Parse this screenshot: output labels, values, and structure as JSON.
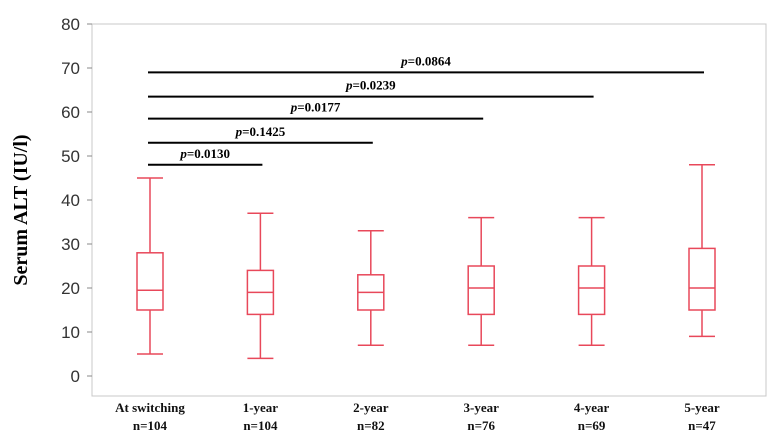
{
  "chart_data": {
    "type": "boxplot",
    "ylabel": "Serum ALT (IU/l)",
    "ylim": [
      0,
      80
    ],
    "yticks": [
      0,
      10,
      20,
      30,
      40,
      50,
      60,
      70,
      80
    ],
    "grid": false,
    "box_color": "#e8485a",
    "categories": [
      {
        "label": "At switching",
        "n": "n=104",
        "min": 5,
        "q1": 15,
        "median": 19.5,
        "q3": 28,
        "max": 45
      },
      {
        "label": "1-year",
        "n": "n=104",
        "min": 4,
        "q1": 14,
        "median": 19,
        "q3": 24,
        "max": 37
      },
      {
        "label": "2-year",
        "n": "n=82",
        "min": 7,
        "q1": 15,
        "median": 19,
        "q3": 23,
        "max": 33
      },
      {
        "label": "3-year",
        "n": "n=76",
        "min": 7,
        "q1": 14,
        "median": 20,
        "q3": 25,
        "max": 36
      },
      {
        "label": "4-year",
        "n": "n=69",
        "min": 7,
        "q1": 14,
        "median": 20,
        "q3": 25,
        "max": 36
      },
      {
        "label": "5-year",
        "n": "n=47",
        "min": 9,
        "q1": 15,
        "median": 20,
        "q3": 29,
        "max": 48
      }
    ],
    "comparisons": [
      {
        "from": 0,
        "to": 1,
        "y": 48,
        "p_prefix": "p",
        "p_value": "=0.0130"
      },
      {
        "from": 0,
        "to": 2,
        "y": 53,
        "p_prefix": "p",
        "p_value": "=0.1425"
      },
      {
        "from": 0,
        "to": 3,
        "y": 58.5,
        "p_prefix": "p",
        "p_value": "=0.0177"
      },
      {
        "from": 0,
        "to": 4,
        "y": 63.5,
        "p_prefix": "p",
        "p_value": "=0.0239"
      },
      {
        "from": 0,
        "to": 5,
        "y": 69,
        "p_prefix": "p",
        "p_value": "=0.0864"
      }
    ]
  }
}
